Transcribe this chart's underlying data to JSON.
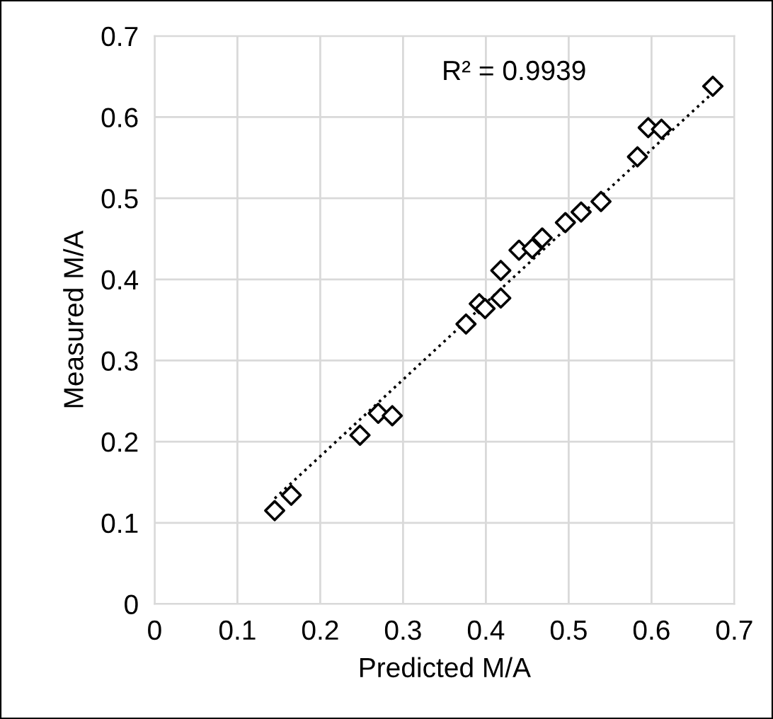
{
  "chart_data": {
    "type": "scatter",
    "xlabel": "Predicted M/A",
    "ylabel": "Measured M/A",
    "annotations": [
      "R² = 0.9939"
    ],
    "xlim": [
      0,
      0.7
    ],
    "ylim": [
      0,
      0.7
    ],
    "xticks": [
      0,
      0.1,
      0.2,
      0.3,
      0.4,
      0.5,
      0.6,
      0.7
    ],
    "yticks": [
      0,
      0.1,
      0.2,
      0.3,
      0.4,
      0.5,
      0.6,
      0.7
    ],
    "grid": true,
    "marker": "diamond",
    "series": [
      {
        "color": "#000000",
        "x": [
          0.145,
          0.165,
          0.248,
          0.27,
          0.287,
          0.376,
          0.392,
          0.399,
          0.418,
          0.418,
          0.44,
          0.456,
          0.468,
          0.496,
          0.515,
          0.539,
          0.583,
          0.596,
          0.612,
          0.674
        ],
        "values": [
          0.115,
          0.134,
          0.208,
          0.235,
          0.232,
          0.345,
          0.37,
          0.364,
          0.377,
          0.411,
          0.436,
          0.438,
          0.451,
          0.47,
          0.483,
          0.496,
          0.551,
          0.587,
          0.585,
          0.638
        ]
      },
      {
        "type": "line",
        "color": "#000000",
        "line_style": "dotted",
        "marker": "none",
        "x": [
          0.145,
          0.674
        ],
        "values": [
          0.13,
          0.63
        ]
      }
    ]
  }
}
